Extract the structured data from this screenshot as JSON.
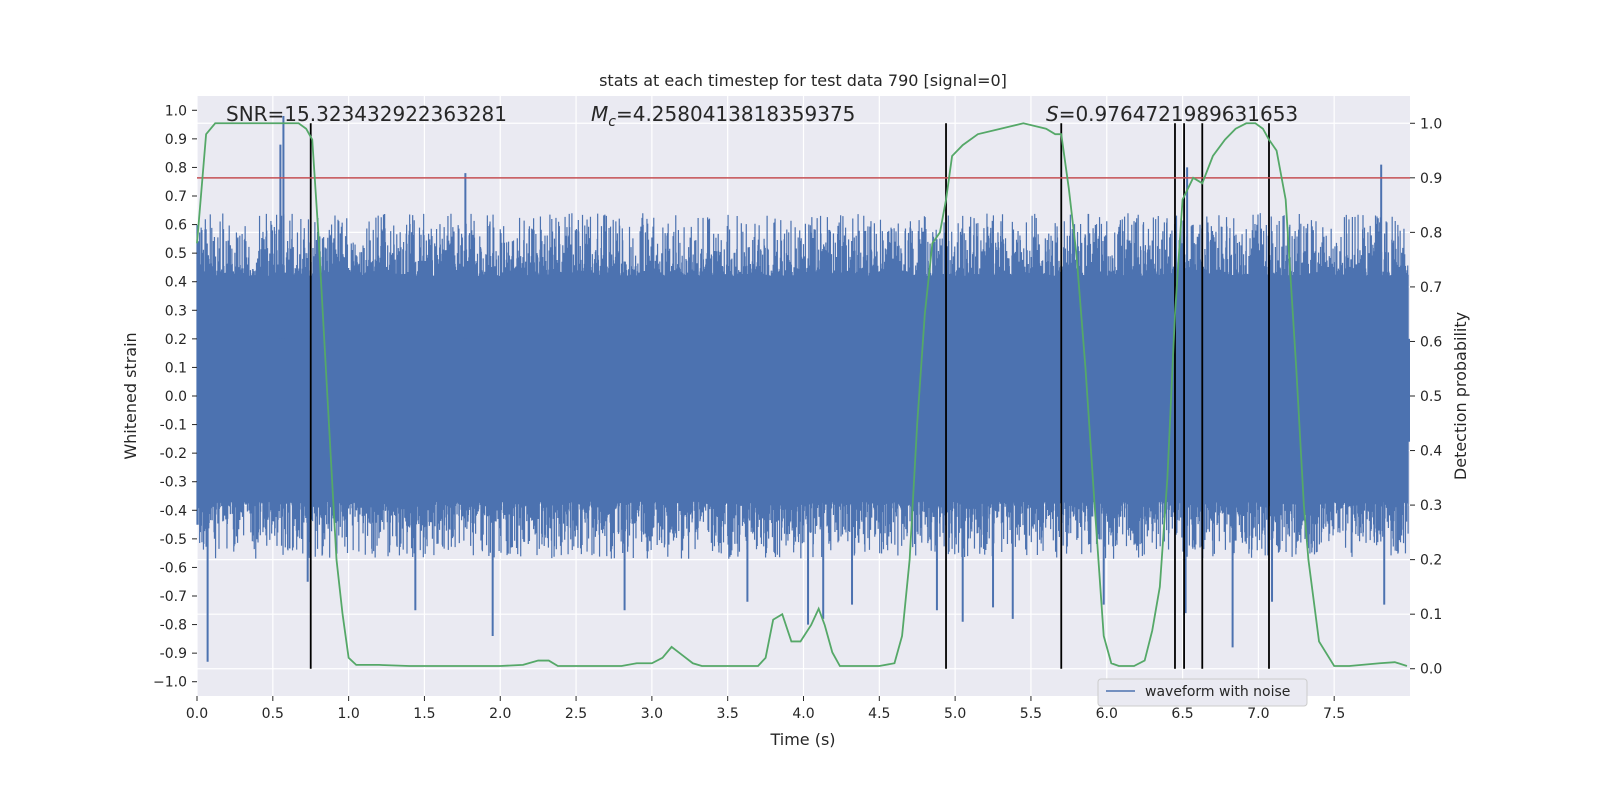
{
  "chart_data": {
    "type": "line",
    "title": "stats at each timestep for test data 790 [signal=0]",
    "xlabel": "Time (s)",
    "ylabel": "Whitened strain",
    "y2label": "Detection probability",
    "xlim": [
      0.0,
      8.0
    ],
    "ylim": [
      -1.05,
      1.05
    ],
    "y2lim": [
      -0.05,
      1.05
    ],
    "x_ticks": [
      "0.0",
      "0.5",
      "1.0",
      "1.5",
      "2.0",
      "2.5",
      "3.0",
      "3.5",
      "4.0",
      "4.5",
      "5.0",
      "5.5",
      "6.0",
      "6.5",
      "7.0",
      "7.5"
    ],
    "y_ticks": [
      "1.0",
      "0.9",
      "0.8",
      "0.7",
      "0.6",
      "0.5",
      "0.4",
      "0.3",
      "0.2",
      "0.1",
      "0.0",
      "-0.1",
      "-0.2",
      "-0.3",
      "-0.4",
      "-0.5",
      "-0.6",
      "-0.7",
      "-0.8",
      "-0.9",
      "−1.0"
    ],
    "y2_ticks": [
      "1.0",
      "0.9",
      "0.8",
      "0.7",
      "0.6",
      "0.5",
      "0.4",
      "0.3",
      "0.2",
      "0.1",
      "0.0"
    ],
    "annotations": {
      "snr": "SNR=15.323432922363281",
      "mc_prefix": "M",
      "mc_sub": "c",
      "mc_value": "=4.2580413818359375",
      "s_prefix": "S",
      "s_value": "=0.9764721989631653"
    },
    "threshold": {
      "y2": 0.9,
      "color": "#c44e52"
    },
    "vertical_lines_x": [
      0.75,
      4.94,
      5.7,
      6.45,
      6.51,
      6.63,
      7.07
    ],
    "vertical_line_range_y2": [
      0.0,
      1.0
    ],
    "probability_series": {
      "name": "detection probability",
      "color": "#55a868",
      "x": [
        0.0,
        0.06,
        0.12,
        0.18,
        0.24,
        0.3,
        0.4,
        0.5,
        0.6,
        0.67,
        0.72,
        0.76,
        0.8,
        0.84,
        0.88,
        0.92,
        0.96,
        1.0,
        1.05,
        1.2,
        1.4,
        1.6,
        1.8,
        2.0,
        2.15,
        2.25,
        2.32,
        2.38,
        2.5,
        2.8,
        2.9,
        3.0,
        3.07,
        3.13,
        3.2,
        3.27,
        3.33,
        3.4,
        3.5,
        3.7,
        3.75,
        3.8,
        3.86,
        3.92,
        3.98,
        4.05,
        4.1,
        4.14,
        4.19,
        4.24,
        4.3,
        4.4,
        4.5,
        4.6,
        4.65,
        4.7,
        4.75,
        4.8,
        4.85,
        4.9,
        4.94,
        4.98,
        5.05,
        5.15,
        5.3,
        5.45,
        5.6,
        5.66,
        5.7,
        5.75,
        5.8,
        5.86,
        5.92,
        5.98,
        6.03,
        6.08,
        6.13,
        6.18,
        6.25,
        6.3,
        6.35,
        6.4,
        6.45,
        6.5,
        6.57,
        6.63,
        6.7,
        6.78,
        6.85,
        6.92,
        6.98,
        7.03,
        7.07,
        7.12,
        7.18,
        7.25,
        7.3,
        7.33,
        7.4,
        7.5,
        7.6,
        7.8,
        7.9,
        7.98
      ],
      "y": [
        0.78,
        0.98,
        1.0,
        1.0,
        1.0,
        1.0,
        1.0,
        1.0,
        1.0,
        1.0,
        0.99,
        0.97,
        0.8,
        0.6,
        0.4,
        0.2,
        0.1,
        0.02,
        0.007,
        0.007,
        0.005,
        0.005,
        0.005,
        0.005,
        0.007,
        0.015,
        0.015,
        0.005,
        0.005,
        0.005,
        0.01,
        0.01,
        0.02,
        0.04,
        0.025,
        0.01,
        0.005,
        0.005,
        0.005,
        0.005,
        0.02,
        0.09,
        0.1,
        0.05,
        0.05,
        0.08,
        0.11,
        0.08,
        0.03,
        0.005,
        0.005,
        0.005,
        0.005,
        0.01,
        0.06,
        0.2,
        0.45,
        0.65,
        0.78,
        0.8,
        0.86,
        0.94,
        0.96,
        0.98,
        0.99,
        1.0,
        0.99,
        0.98,
        0.98,
        0.88,
        0.76,
        0.55,
        0.3,
        0.06,
        0.01,
        0.005,
        0.005,
        0.005,
        0.015,
        0.07,
        0.15,
        0.35,
        0.65,
        0.86,
        0.9,
        0.89,
        0.94,
        0.97,
        0.99,
        1.0,
        1.0,
        0.99,
        0.97,
        0.95,
        0.86,
        0.55,
        0.3,
        0.2,
        0.05,
        0.005,
        0.005,
        0.01,
        0.012,
        0.005
      ]
    },
    "waveform_series": {
      "name": "waveform with noise",
      "color": "#4c72b0",
      "sample_rate_hz": 1024,
      "core_band": [
        -0.37,
        0.42
      ],
      "spikes": [
        {
          "x": 0.07,
          "y": -0.93
        },
        {
          "x": 0.57,
          "y": 0.98
        },
        {
          "x": 0.73,
          "y": -0.65
        },
        {
          "x": 1.44,
          "y": -0.75
        },
        {
          "x": 1.95,
          "y": -0.84
        },
        {
          "x": 2.82,
          "y": -0.75
        },
        {
          "x": 3.63,
          "y": -0.72
        },
        {
          "x": 4.03,
          "y": -0.8
        },
        {
          "x": 4.13,
          "y": -0.78
        },
        {
          "x": 4.32,
          "y": -0.73
        },
        {
          "x": 4.88,
          "y": -0.75
        },
        {
          "x": 5.05,
          "y": -0.79
        },
        {
          "x": 5.25,
          "y": -0.74
        },
        {
          "x": 5.38,
          "y": -0.78
        },
        {
          "x": 5.98,
          "y": -0.73
        },
        {
          "x": 6.52,
          "y": -0.76
        },
        {
          "x": 6.83,
          "y": -0.88
        },
        {
          "x": 7.09,
          "y": -0.72
        },
        {
          "x": 7.81,
          "y": 0.81
        },
        {
          "x": 7.83,
          "y": -0.73
        },
        {
          "x": 1.77,
          "y": 0.78
        },
        {
          "x": 6.53,
          "y": 0.8
        },
        {
          "x": 0.55,
          "y": 0.88
        }
      ]
    },
    "legend": {
      "label": "waveform with noise",
      "position": "lower-right"
    },
    "colors": {
      "background": "#eaeaf2",
      "grid": "#ffffff",
      "vlines": "#000000"
    }
  }
}
